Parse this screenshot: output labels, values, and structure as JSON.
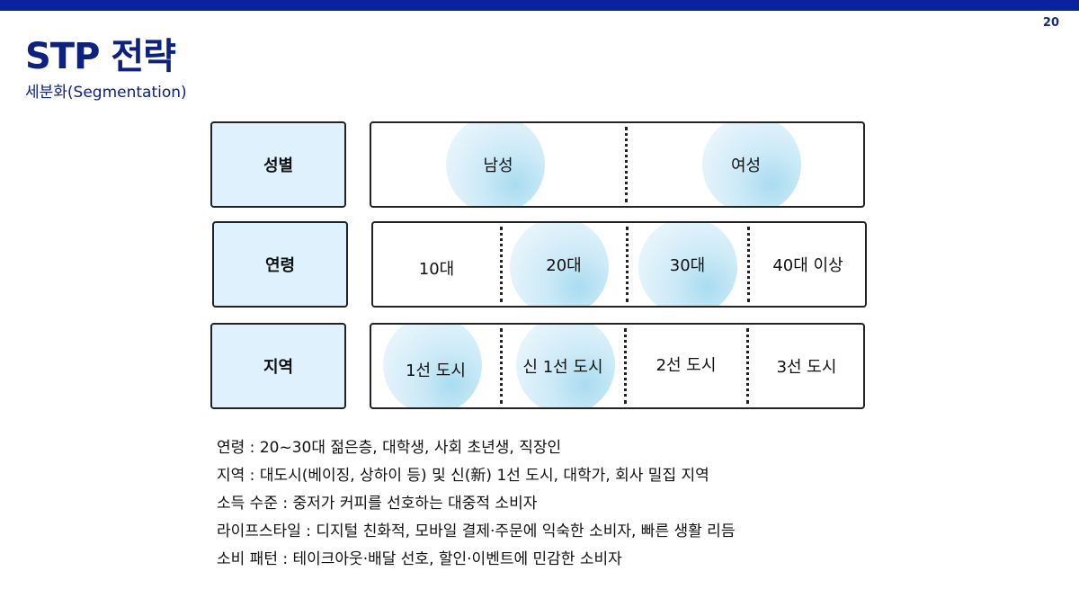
{
  "page_number": "20",
  "title": "STP 전략",
  "subtitle": "세분화(Segmentation)",
  "rows": [
    {
      "label": "성별",
      "cells": [
        "남성",
        "여성"
      ],
      "highlighted": [
        "남성",
        "여성"
      ]
    },
    {
      "label": "연령",
      "cells": [
        "10대",
        "20대",
        "30대",
        "40대 이상"
      ],
      "highlighted": [
        "20대",
        "30대"
      ]
    },
    {
      "label": "지역",
      "cells": [
        "1선 도시",
        "신 1선 도시",
        "2선 도시",
        "3선 도시"
      ],
      "highlighted": [
        "1선 도시",
        "신 1선 도시"
      ]
    }
  ],
  "notes": [
    "연령 : 20~30대 젊은층, 대학생, 사회 초년생, 직장인",
    "지역 : 대도시(베이징, 상하이 등) 및 신(新) 1선 도시, 대학가, 회사 밀집 지역",
    "소득 수준 : 중저가 커피를 선호하는 대중적 소비자",
    "라이프스타일 : 디지털 친화적, 모바일 결제·주문에 익숙한 소비자, 빠른 생활 리듬",
    "소비 패턴 : 테이크아웃·배달 선호, 할인·이벤트에 민감한 소비자"
  ],
  "colors": {
    "accent": "#0d2180",
    "topbar": "#0a22a0",
    "label_bg": "#dff1fd",
    "highlight": "#bfe5f5"
  }
}
